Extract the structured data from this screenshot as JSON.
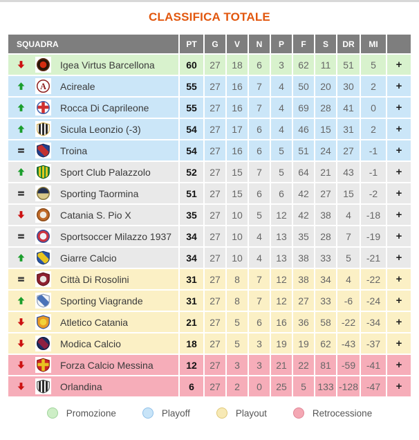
{
  "page": {
    "title": "CLASSIFICA TOTALE",
    "title_color": "#e2570e",
    "header_bg": "#7e7e7e"
  },
  "table": {
    "headers": [
      "SQUADRA",
      "PT",
      "G",
      "V",
      "N",
      "P",
      "F",
      "S",
      "DR",
      "MI",
      ""
    ],
    "expand_label": "+",
    "rows": [
      {
        "movement": "down",
        "team": "Igea Virtus Barcellona",
        "zone": "promozione",
        "stats": [
          60,
          27,
          18,
          6,
          3,
          62,
          11,
          51,
          5
        ],
        "logo": {
          "shape": "circle",
          "c1": "#2b1408",
          "detail": "dot",
          "c2": "#d42c10",
          "border": "#5a2c12"
        }
      },
      {
        "movement": "up",
        "team": "Acireale",
        "zone": "playoff",
        "stats": [
          55,
          27,
          16,
          7,
          4,
          50,
          20,
          30,
          2
        ],
        "logo": {
          "shape": "circle",
          "c1": "#ffffff",
          "detail": "letter",
          "letter": "A",
          "c2": "#8c1c1c",
          "border": "#8c1c1c"
        }
      },
      {
        "movement": "up",
        "team": "Rocca Di Caprileone",
        "zone": "playoff",
        "stats": [
          55,
          27,
          16,
          7,
          4,
          69,
          28,
          41,
          0
        ],
        "logo": {
          "shape": "circle",
          "c1": "#ffffff",
          "detail": "cross",
          "c2": "#d03030",
          "border": "#4466b0"
        }
      },
      {
        "movement": "up",
        "team": "Sicula Leonzio (-3)",
        "zone": "playoff",
        "stats": [
          54,
          27,
          17,
          6,
          4,
          46,
          15,
          31,
          2
        ],
        "logo": {
          "shape": "shield",
          "c1": "#ffffff",
          "detail": "stripes",
          "c2": "#2a2a2a",
          "border": "#c9a84c"
        }
      },
      {
        "movement": "same",
        "team": "Troina",
        "zone": "playoff",
        "stats": [
          54,
          27,
          16,
          6,
          5,
          51,
          24,
          27,
          -1
        ],
        "logo": {
          "shape": "shield",
          "c1": "#23408f",
          "detail": "band",
          "c2": "#c33030",
          "border": "#1a2a5a"
        }
      },
      {
        "movement": "up",
        "team": "Sport Club Palazzolo",
        "zone": "none",
        "stats": [
          52,
          27,
          15,
          7,
          5,
          64,
          21,
          43,
          -1
        ],
        "logo": {
          "shape": "shield",
          "c1": "#1e8a35",
          "detail": "stripes",
          "c2": "#e3c81f",
          "border": "#145c22"
        }
      },
      {
        "movement": "same",
        "team": "Sporting Taormina",
        "zone": "none",
        "stats": [
          51,
          27,
          15,
          6,
          6,
          42,
          27,
          15,
          -2
        ],
        "logo": {
          "shape": "circle",
          "c1": "#d9c98a",
          "detail": "half",
          "c2": "#23304f",
          "border": "#8a7a40"
        }
      },
      {
        "movement": "down",
        "team": "Catania S. Pio X",
        "zone": "none",
        "stats": [
          35,
          27,
          10,
          5,
          12,
          42,
          38,
          4,
          -18
        ],
        "logo": {
          "shape": "circle",
          "c1": "#c06a28",
          "detail": "dot",
          "c2": "#f0ece4",
          "border": "#8a4a18"
        }
      },
      {
        "movement": "same",
        "team": "Sportsoccer Milazzo 1937",
        "zone": "none",
        "stats": [
          34,
          27,
          10,
          4,
          13,
          35,
          28,
          7,
          -19
        ],
        "logo": {
          "shape": "circle",
          "c1": "#cc3340",
          "detail": "dot",
          "c2": "#f0f0f5",
          "border": "#35509a"
        }
      },
      {
        "movement": "up",
        "team": "Giarre Calcio",
        "zone": "none",
        "stats": [
          34,
          27,
          10,
          4,
          13,
          38,
          33,
          5,
          -21
        ],
        "logo": {
          "shape": "shield",
          "c1": "#2a55a5",
          "detail": "band",
          "c2": "#e8c51e",
          "border": "#1a3a70"
        }
      },
      {
        "movement": "same",
        "team": "Città Di Rosolini",
        "zone": "playout",
        "stats": [
          31,
          27,
          8,
          7,
          12,
          38,
          34,
          4,
          -22
        ],
        "logo": {
          "shape": "shield",
          "c1": "#8e2030",
          "detail": "dot",
          "c2": "#e8e4e0",
          "border": "#5a1218"
        }
      },
      {
        "movement": "up",
        "team": "Sporting Viagrande",
        "zone": "playout",
        "stats": [
          31,
          27,
          8,
          7,
          12,
          27,
          33,
          -6,
          -24
        ],
        "logo": {
          "shape": "shield",
          "c1": "#f2f4f8",
          "detail": "band",
          "c2": "#4a72b8",
          "border": "#8a9ab5"
        }
      },
      {
        "movement": "down",
        "team": "Atletico Catania",
        "zone": "playout",
        "stats": [
          21,
          27,
          5,
          6,
          16,
          36,
          58,
          -22,
          -34
        ],
        "logo": {
          "shape": "shield",
          "c1": "#e89a25",
          "detail": "dot",
          "c2": "#f2d23a",
          "border": "#2a4a9a"
        }
      },
      {
        "movement": "down",
        "team": "Modica Calcio",
        "zone": "playout",
        "stats": [
          18,
          27,
          5,
          3,
          19,
          19,
          62,
          -43,
          -37
        ],
        "logo": {
          "shape": "circle",
          "c1": "#1d2d62",
          "detail": "band",
          "c2": "#8e2040",
          "border": "#111c40"
        }
      },
      {
        "movement": "down",
        "team": "Forza Calcio Messina",
        "zone": "retrocessione",
        "stats": [
          12,
          27,
          3,
          3,
          21,
          22,
          81,
          -59,
          -41
        ],
        "logo": {
          "shape": "shield",
          "c1": "#cc2525",
          "detail": "cross",
          "c2": "#e8c320",
          "border": "#8a1515"
        }
      },
      {
        "movement": "down",
        "team": "Orlandina",
        "zone": "retrocessione",
        "stats": [
          6,
          27,
          2,
          0,
          25,
          5,
          133,
          -128,
          -47
        ],
        "logo": {
          "shape": "shield",
          "c1": "#ffffff",
          "detail": "stripes",
          "c2": "#2a2a2a",
          "border": "#555555"
        }
      }
    ]
  },
  "zone_colors": {
    "promozione": "#d8f2cd",
    "playoff": "#cbe6f8",
    "none": "#e9e9e9",
    "playout": "#fbf0c5",
    "retrocessione": "#f6adb9"
  },
  "movement_colors": {
    "up": "#1b9e2c",
    "down": "#cc1111",
    "same": "#3a3a3a"
  },
  "legend": [
    {
      "label": "Promozione",
      "fill": "#cdeec6",
      "border": "#a0d49c"
    },
    {
      "label": "Playoff",
      "fill": "#c8e4f8",
      "border": "#90c0e8"
    },
    {
      "label": "Playout",
      "fill": "#f7e9b5",
      "border": "#e0c878"
    },
    {
      "label": "Retrocessione",
      "fill": "#f4a8b4",
      "border": "#e08595"
    }
  ]
}
